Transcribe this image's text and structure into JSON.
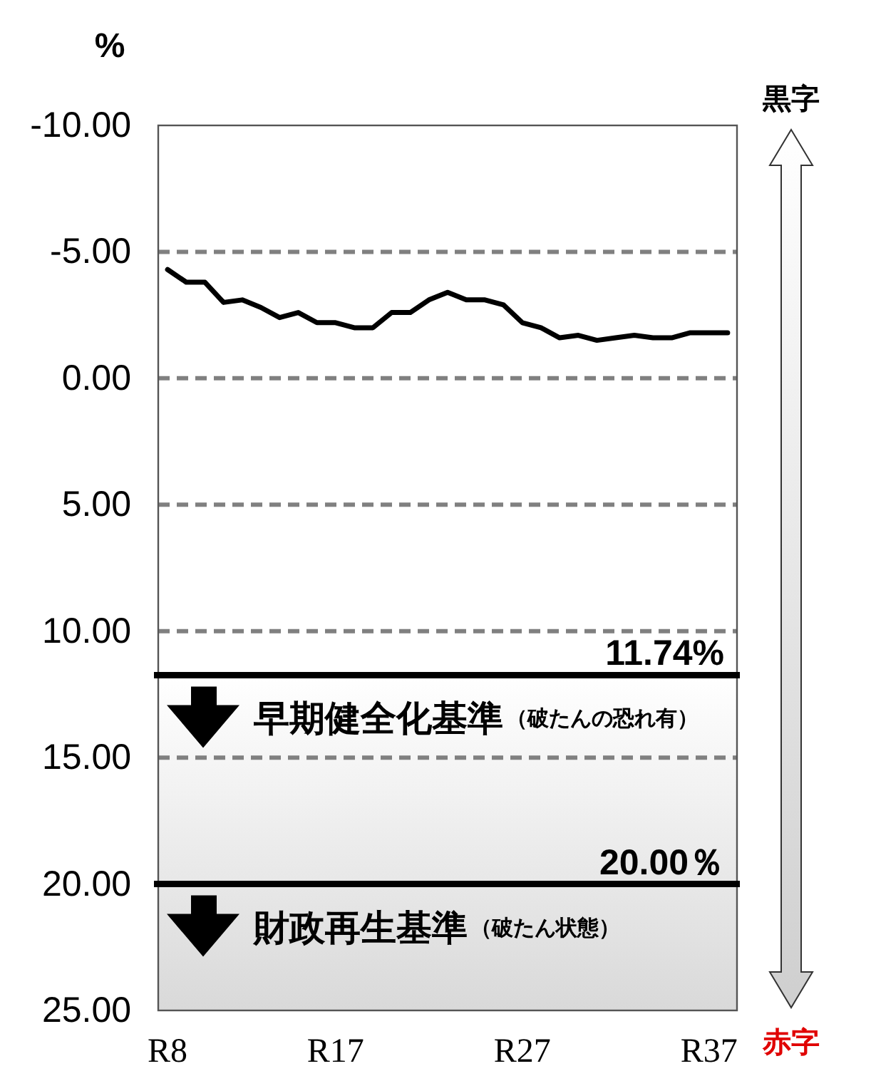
{
  "chart_data": {
    "type": "line",
    "ylabel": "%",
    "categories": [
      "R8",
      null,
      null,
      null,
      null,
      null,
      null,
      null,
      null,
      "R17",
      null,
      null,
      null,
      null,
      null,
      null,
      null,
      null,
      null,
      "R27",
      null,
      null,
      null,
      null,
      null,
      null,
      null,
      null,
      null,
      "R37",
      null
    ],
    "series": [
      {
        "color": "#000000",
        "values": [
          -4.3,
          -3.8,
          -3.8,
          -3.0,
          -3.1,
          -2.8,
          -2.4,
          -2.6,
          -2.2,
          -2.2,
          -2.0,
          -2.0,
          -2.6,
          -2.6,
          -3.1,
          -3.4,
          -3.1,
          -3.1,
          -2.9,
          -2.2,
          -2.0,
          -1.6,
          -1.7,
          -1.5,
          -1.6,
          -1.7,
          -1.6,
          -1.6,
          -1.8,
          -1.8,
          -1.8
        ]
      }
    ],
    "ylim": [
      25,
      -10
    ],
    "yticks": [
      {
        "value": -10,
        "label": "-10.00"
      },
      {
        "value": -5,
        "label": "-5.00"
      },
      {
        "value": 0,
        "label": "0.00"
      },
      {
        "value": 5,
        "label": "5.00"
      },
      {
        "value": 10,
        "label": "10.00"
      },
      {
        "value": 15,
        "label": "15.00"
      },
      {
        "value": 20,
        "label": "20.00"
      },
      {
        "value": 25,
        "label": "25.00"
      }
    ],
    "grid": "y",
    "ref_lines": [
      {
        "axis": "y",
        "value": 11.74,
        "label": "11.74%",
        "color": "#000000"
      },
      {
        "axis": "y",
        "value": 20,
        "label": "20.00％",
        "color": "#000000"
      }
    ],
    "bands": [
      {
        "axis": "y",
        "from": 11.74,
        "to": 25,
        "color": "#d9d9d9"
      }
    ],
    "annotations": [
      "黒字",
      "赤字",
      "早期健全化基準",
      "（破たんの恐れ有）",
      "財政再生基準",
      "（破たん状態）"
    ]
  }
}
